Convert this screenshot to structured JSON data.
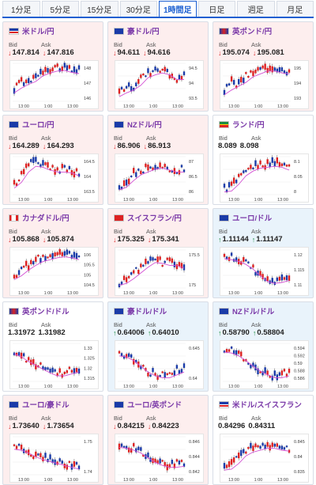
{
  "tabs": [
    {
      "label": "1分足",
      "active": false
    },
    {
      "label": "5分足",
      "active": false
    },
    {
      "label": "15分足",
      "active": false
    },
    {
      "label": "30分足",
      "active": false
    },
    {
      "label": "1時間足",
      "active": true
    },
    {
      "label": "日足",
      "active": false
    },
    {
      "label": "週足",
      "active": false
    },
    {
      "label": "月足",
      "active": false
    }
  ],
  "labels": {
    "bid": "Bid",
    "ask": "Ask"
  },
  "x_ticks": [
    "13:00",
    "1:00",
    "13:00"
  ],
  "colors": {
    "up_candle": "#d22",
    "down_candle": "#1a3ba8",
    "ma_line": "#d34fd3"
  },
  "cards": [
    {
      "pair": "米ドル/円",
      "flag": "us",
      "state": "down",
      "bid": "147.814",
      "ask": "147.816",
      "y_ticks": [
        "148",
        "147",
        "146"
      ],
      "trend": [
        0.7,
        0.45,
        0.5,
        0.3,
        0.2,
        0.15,
        0.1,
        0.12,
        0.2,
        0.18
      ]
    },
    {
      "pair": "豪ドル/円",
      "flag": "au",
      "state": "down",
      "bid": "94.611",
      "ask": "94.616",
      "y_ticks": [
        "94.5",
        "94",
        "93.5"
      ],
      "trend": [
        0.8,
        0.6,
        0.65,
        0.35,
        0.25,
        0.2,
        0.15,
        0.3,
        0.4,
        0.3
      ]
    },
    {
      "pair": "英ポンド/円",
      "flag": "uk",
      "state": "down",
      "bid": "195.074",
      "ask": "195.081",
      "y_ticks": [
        "195",
        "194",
        "193"
      ],
      "trend": [
        0.75,
        0.5,
        0.55,
        0.3,
        0.25,
        0.15,
        0.1,
        0.15,
        0.2,
        0.2
      ]
    },
    {
      "pair": "ユーロ/円",
      "flag": "eu",
      "state": "down",
      "bid": "164.289",
      "ask": "164.293",
      "y_ticks": [
        "164.5",
        "164",
        "163.5"
      ],
      "trend": [
        0.75,
        0.45,
        0.2,
        0.15,
        0.25,
        0.3,
        0.35,
        0.3,
        0.4,
        0.45
      ]
    },
    {
      "pair": "NZドル/円",
      "flag": "nz",
      "state": "down",
      "bid": "86.906",
      "ask": "86.913",
      "y_ticks": [
        "87",
        "86.5",
        "86"
      ],
      "trend": [
        0.8,
        0.65,
        0.45,
        0.35,
        0.3,
        0.2,
        0.25,
        0.3,
        0.35,
        0.3
      ]
    },
    {
      "pair": "ランド/円",
      "flag": "za",
      "state": "flat",
      "bid": "8.089",
      "ask": "8.098",
      "y_ticks": [
        "8.1",
        "8.05",
        "8"
      ],
      "trend": [
        0.85,
        0.8,
        0.5,
        0.35,
        0.25,
        0.2,
        0.2,
        0.15,
        0.25,
        0.3
      ]
    },
    {
      "pair": "カナダドル/円",
      "flag": "ca",
      "state": "down",
      "bid": "105.868",
      "ask": "105.874",
      "y_ticks": [
        "106",
        "105.5",
        "105",
        "104.5"
      ],
      "trend": [
        0.7,
        0.5,
        0.4,
        0.25,
        0.2,
        0.15,
        0.1,
        0.1,
        0.15,
        0.2
      ]
    },
    {
      "pair": "スイスフラン/円",
      "flag": "ch",
      "state": "down",
      "bid": "175.325",
      "ask": "175.341",
      "y_ticks": [
        "175.5",
        "175"
      ],
      "trend": [
        0.85,
        0.75,
        0.6,
        0.45,
        0.3,
        0.2,
        0.35,
        0.3,
        0.35,
        0.45
      ]
    },
    {
      "pair": "ユーロ/ドル",
      "flag": "eu-us",
      "state": "up",
      "bid": "1.11144",
      "ask": "1.11147",
      "y_ticks": [
        "1.12",
        "1.115",
        "1.11"
      ],
      "trend": [
        0.15,
        0.2,
        0.25,
        0.35,
        0.5,
        0.7,
        0.8,
        0.8,
        0.75,
        0.7
      ]
    },
    {
      "pair": "英ポンド/ドル",
      "flag": "uk-us",
      "state": "flat",
      "bid": "1.31972",
      "ask": "1.31982",
      "y_ticks": [
        "1.33",
        "1.325",
        "1.32",
        "1.315"
      ],
      "trend": [
        0.2,
        0.35,
        0.45,
        0.55,
        0.65,
        0.75,
        0.8,
        0.75,
        0.7,
        0.65
      ]
    },
    {
      "pair": "豪ドル/ドル",
      "flag": "au-us",
      "state": "up",
      "bid": "0.64006",
      "ask": "0.64010",
      "y_ticks": [
        "0.645",
        "0.64"
      ],
      "trend": [
        0.25,
        0.3,
        0.45,
        0.6,
        0.75,
        0.8,
        0.85,
        0.8,
        0.7,
        0.65
      ]
    },
    {
      "pair": "NZドル/ドル",
      "flag": "nz-us",
      "state": "up",
      "bid": "0.58790",
      "ask": "0.58804",
      "y_ticks": [
        "0.594",
        "0.592",
        "0.59",
        "0.588",
        "0.586"
      ],
      "trend": [
        0.15,
        0.2,
        0.3,
        0.45,
        0.6,
        0.7,
        0.8,
        0.85,
        0.8,
        0.75
      ]
    },
    {
      "pair": "ユーロ/豪ドル",
      "flag": "eu-au",
      "state": "down",
      "bid": "1.73640",
      "ask": "1.73654",
      "y_ticks": [
        "1.75",
        "1.74"
      ],
      "trend": [
        0.25,
        0.3,
        0.4,
        0.5,
        0.55,
        0.6,
        0.65,
        0.7,
        0.75,
        0.8
      ]
    },
    {
      "pair": "ユーロ/英ポンド",
      "flag": "eu-uk",
      "state": "down",
      "bid": "0.84215",
      "ask": "0.84223",
      "y_ticks": [
        "0.846",
        "0.844",
        "0.842"
      ],
      "trend": [
        0.2,
        0.25,
        0.3,
        0.4,
        0.55,
        0.65,
        0.7,
        0.75,
        0.7,
        0.7
      ]
    },
    {
      "pair": "米ドル/スイスフラン",
      "flag": "us-ch",
      "state": "flat",
      "bid": "0.84296",
      "ask": "0.84311",
      "y_ticks": [
        "0.845",
        "0.84",
        "0.835"
      ],
      "trend": [
        0.8,
        0.75,
        0.5,
        0.35,
        0.3,
        0.25,
        0.2,
        0.25,
        0.3,
        0.3
      ]
    }
  ]
}
